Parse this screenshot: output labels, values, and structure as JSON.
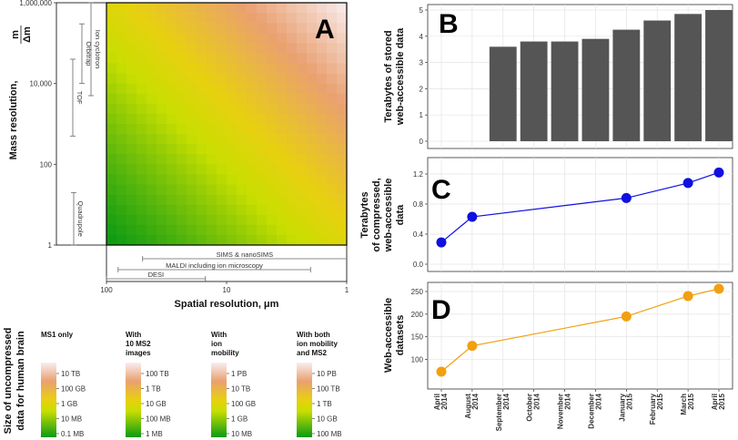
{
  "chart_data": [
    {
      "panel": "A",
      "type": "heatmap",
      "xlabel": "Spatial resolution, μm",
      "ylabel_main": "Mass resolution,",
      "ylabel_fraction": {
        "numerator": "m",
        "denominator": "Δm"
      },
      "x_ticks": [
        "100",
        "10",
        "1"
      ],
      "y_ticks": [
        "1,000,000",
        "10,000",
        "100",
        "1"
      ],
      "xlim": [
        1,
        100
      ],
      "ylim": [
        1,
        1000000
      ],
      "instruments_mass": [
        {
          "name": "Ion cyclotron",
          "range": [
            5000,
            1000000
          ]
        },
        {
          "name": "Orbitrap",
          "range": [
            10000,
            300000
          ]
        },
        {
          "name": "TOF",
          "range": [
            500,
            40000
          ]
        },
        {
          "name": "Quadrupole",
          "range": [
            1,
            20
          ]
        }
      ],
      "instruments_spatial": [
        {
          "name": "SIMS & nanoSIMS",
          "range": [
            0.1,
            50
          ]
        },
        {
          "name": "MALDI including ion microscopy",
          "range": [
            2,
            80
          ]
        },
        {
          "name": "DESI",
          "range": [
            15,
            120
          ]
        }
      ]
    },
    {
      "panel": "B",
      "type": "bar",
      "ylabel": "Terabytes of stored web-accessible data",
      "ylabel_lines": [
        "Terabytes of stored",
        "web-accessible data"
      ],
      "categories": [
        "April 2014",
        "August 2014",
        "September 2014",
        "October 2014",
        "November 2014",
        "December 2014",
        "January 2015",
        "February 2015",
        "March 2015",
        "April 2015"
      ],
      "values": [
        null,
        null,
        3.6,
        3.8,
        3.8,
        3.9,
        4.25,
        4.6,
        4.85,
        5.0
      ],
      "ylim": [
        0,
        5
      ],
      "y_ticks": [
        "0",
        "1",
        "2",
        "3",
        "4",
        "5"
      ],
      "color": "#555555"
    },
    {
      "panel": "C",
      "type": "line",
      "ylabel": "Terabytes of compressed, web-accessible data",
      "ylabel_lines": [
        "Terabytes",
        "of compressed,",
        "web-accessible",
        "data"
      ],
      "x": [
        "April 2014",
        "August 2014",
        "January 2015",
        "March 2015",
        "April 2015"
      ],
      "values": [
        0.29,
        0.63,
        0.88,
        1.08,
        1.22
      ],
      "ylim": [
        0,
        1.2
      ],
      "y_ticks": [
        "0.0",
        "0.4",
        "0.8",
        "1.2"
      ],
      "color": "#1010e0"
    },
    {
      "panel": "D",
      "type": "line",
      "ylabel": "Web-accessible datasets",
      "ylabel_lines": [
        "Web-accessible",
        "datasets"
      ],
      "x": [
        "April 2014",
        "August 2014",
        "January 2015",
        "March 2015",
        "April 2015"
      ],
      "values": [
        73,
        130,
        195,
        240,
        256
      ],
      "ylim": [
        75,
        250
      ],
      "y_ticks": [
        "100",
        "150",
        "200",
        "250"
      ],
      "color": "#f0a010",
      "x_tick_labels": [
        {
          "line1": "April",
          "line2": "2014"
        },
        {
          "line1": "August",
          "line2": "2014"
        },
        {
          "line1": "September",
          "line2": "2014"
        },
        {
          "line1": "October",
          "line2": "2014"
        },
        {
          "line1": "November",
          "line2": "2014"
        },
        {
          "line1": "December",
          "line2": "2014"
        },
        {
          "line1": "January",
          "line2": "2015"
        },
        {
          "line1": "February",
          "line2": "2015"
        },
        {
          "line1": "March",
          "line2": "2015"
        },
        {
          "line1": "April",
          "line2": "2015"
        }
      ]
    }
  ],
  "legend": {
    "title_lines": [
      "Size of uncompressed",
      "data for human brain"
    ],
    "columns": [
      {
        "title_lines": [
          "MS1 only"
        ],
        "labels": [
          "10 TB",
          "100 GB",
          "1 GB",
          "10 MB",
          "0.1 MB"
        ]
      },
      {
        "title_lines": [
          "With",
          "10 MS2",
          "images"
        ],
        "labels": [
          "100 TB",
          "1 TB",
          "10 GB",
          "100 MB",
          "1 MB"
        ]
      },
      {
        "title_lines": [
          "With",
          "ion",
          "mobility"
        ],
        "labels": [
          "1 PB",
          "10 TB",
          "100 GB",
          "1 GB",
          "10 MB"
        ]
      },
      {
        "title_lines": [
          "With both",
          "ion mobility",
          "and MS2"
        ],
        "labels": [
          "10 PB",
          "100 TB",
          "1 TB",
          "10 GB",
          "100 MB"
        ]
      }
    ]
  }
}
